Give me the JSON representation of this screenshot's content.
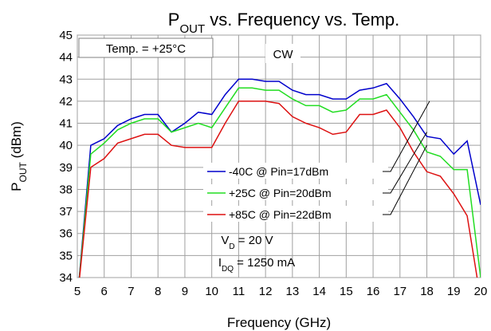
{
  "chart_data": {
    "type": "line",
    "title": [
      {
        "text": "P"
      },
      {
        "text": "OUT",
        "sub": true
      },
      {
        "text": " vs. Frequency vs. Temp."
      }
    ],
    "x_label": [
      {
        "text": "Frequency (GHz)"
      }
    ],
    "y_label": [
      {
        "text": "P"
      },
      {
        "text": "OUT",
        "sub": true
      },
      {
        "text": " (dBm)"
      }
    ],
    "annotations": [
      {
        "segments": [
          {
            "text": "Temp. = +25°C"
          }
        ],
        "boxed": true
      },
      {
        "segments": [
          {
            "text": "CW"
          }
        ],
        "boxed": true
      },
      {
        "segments": [
          {
            "text": "V"
          },
          {
            "text": "D",
            "sub": true
          },
          {
            "text": " = 20 V"
          }
        ]
      },
      {
        "segments": [
          {
            "text": "I"
          },
          {
            "text": "DQ",
            "sub": true
          },
          {
            "text": " = 1250 mA"
          }
        ]
      }
    ],
    "x": [
      5,
      5.5,
      6,
      6.5,
      7,
      7.5,
      8,
      8.5,
      9,
      9.5,
      10,
      10.5,
      11,
      11.5,
      12,
      12.5,
      13,
      13.5,
      14,
      14.5,
      15,
      15.5,
      16,
      16.5,
      17,
      17.5,
      18,
      18.5,
      19,
      19.5,
      20
    ],
    "series": [
      {
        "name": "-40C  @ Pin=17dBm",
        "color": "#0000cc",
        "values": [
          33,
          40.0,
          40.3,
          40.9,
          41.2,
          41.4,
          41.4,
          40.6,
          41.0,
          41.5,
          41.4,
          42.3,
          43.0,
          43.0,
          42.9,
          42.9,
          42.5,
          42.3,
          42.3,
          42.1,
          42.1,
          42.5,
          42.6,
          42.8,
          42.1,
          41.3,
          40.4,
          40.3,
          39.6,
          40.2,
          37.3
        ]
      },
      {
        "name": "+25C  @ Pin=20dBm",
        "color": "#22dd22",
        "values": [
          33,
          39.6,
          40.1,
          40.7,
          41.0,
          41.2,
          41.2,
          40.6,
          40.8,
          41.0,
          40.8,
          41.7,
          42.6,
          42.6,
          42.5,
          42.5,
          42.1,
          41.8,
          41.8,
          41.5,
          41.6,
          42.1,
          42.1,
          42.3,
          41.5,
          40.7,
          39.7,
          39.5,
          38.9,
          38.9,
          34
        ]
      },
      {
        "name": "+85C  @ Pin=22dBm",
        "color": "#dd1111",
        "values": [
          33,
          39.0,
          39.4,
          40.1,
          40.3,
          40.5,
          40.5,
          40.0,
          39.9,
          39.9,
          39.9,
          41.0,
          42.0,
          42.0,
          42.0,
          41.9,
          41.3,
          41.0,
          40.8,
          40.5,
          40.6,
          41.4,
          41.4,
          41.6,
          40.8,
          39.7,
          38.8,
          38.6,
          37.8,
          36.8,
          33
        ]
      }
    ],
    "xlim": [
      5,
      20
    ],
    "xticks": [
      5,
      6,
      7,
      8,
      9,
      10,
      11,
      12,
      13,
      14,
      15,
      16,
      17,
      18,
      19,
      20
    ],
    "ylim": [
      34,
      45
    ],
    "yticks": [
      34,
      35,
      36,
      37,
      38,
      39,
      40,
      41,
      42,
      43,
      44,
      45
    ],
    "grid": true
  }
}
